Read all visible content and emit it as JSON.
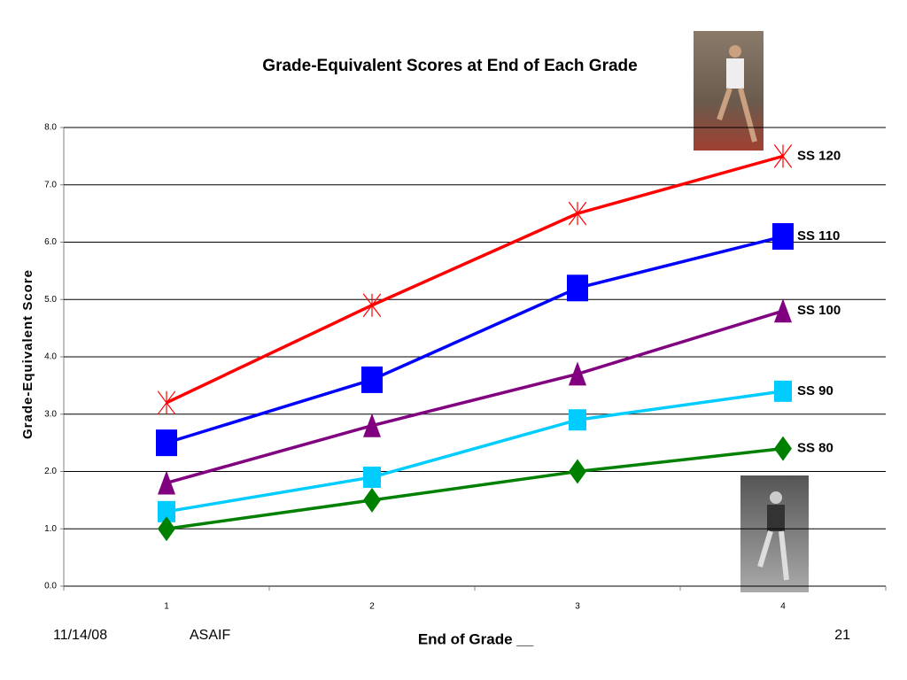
{
  "chart_data": {
    "type": "line",
    "title": "Grade-Equivalent Scores at End of Each Grade",
    "x_label": "End of Grade __",
    "y_label": "Grade-Equivalent Score",
    "categories": [
      "1",
      "2",
      "3",
      "4"
    ],
    "series": [
      {
        "name": "SS 120",
        "color": "#ff0000",
        "marker": "asterisk",
        "values": [
          3.2,
          4.9,
          6.5,
          7.5
        ]
      },
      {
        "name": "SS 110",
        "color": "#0000ff",
        "marker": "square",
        "values": [
          2.5,
          3.6,
          5.2,
          6.1
        ]
      },
      {
        "name": "SS 100",
        "color": "#800080",
        "marker": "triangle",
        "values": [
          1.8,
          2.8,
          3.7,
          4.8
        ]
      },
      {
        "name": "SS 90",
        "color": "#00ccff",
        "marker": "small-square",
        "values": [
          1.3,
          1.9,
          2.9,
          3.4
        ]
      },
      {
        "name": "SS 80",
        "color": "#008000",
        "marker": "diamond",
        "values": [
          1.0,
          1.5,
          2.0,
          2.4
        ]
      }
    ],
    "ylim": [
      0,
      8
    ],
    "yticks": [
      {
        "value": 0,
        "label": "0.0"
      },
      {
        "value": 1,
        "label": "1.0"
      },
      {
        "value": 2,
        "label": "2.0"
      },
      {
        "value": 3,
        "label": "3.0"
      },
      {
        "value": 4,
        "label": "4.0"
      },
      {
        "value": 5,
        "label": "5.0"
      },
      {
        "value": 6,
        "label": "6.0"
      },
      {
        "value": 7,
        "label": "7.0"
      },
      {
        "value": 8,
        "label": "8.0"
      }
    ],
    "grid": true
  },
  "footer": {
    "date": "11/14/08",
    "author": "ASAIF",
    "page": "21"
  }
}
